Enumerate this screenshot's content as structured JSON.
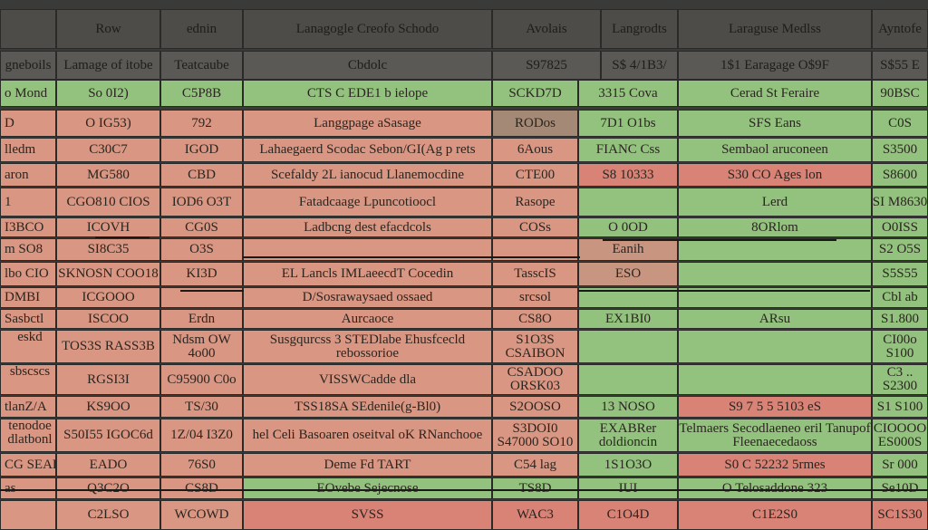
{
  "header": {
    "cells": [
      "Row",
      "ednin",
      "Lanagogle Creofo Schodo",
      "Avolais",
      "Langrodts",
      "Laraguse Medlss",
      "Ayntofe"
    ]
  },
  "subheader": {
    "cells": [
      "gneboils",
      "Lamage of itobe",
      "Teatcaube",
      "Cbdolc",
      "S97825",
      "S$ 4/1B3/",
      "1$1 Earagage O$9F",
      "S$55 E"
    ]
  },
  "rows": [
    [
      "o Mond",
      "So 0I2)",
      "C5P8B",
      "CTS C  EDE1 b ielope",
      "SCKD7D",
      "3315 Cova",
      "Cerad St Feraire",
      "90BSC"
    ],
    [
      "D",
      "O IG53)",
      "792",
      "Langgpage aSasage",
      "RODos",
      "7D1 O1bs",
      "SFS Eans",
      "C0S"
    ],
    [
      "lledm",
      "C30C7",
      "IGOD",
      "Lahaegaerd Scodac Sebon/GI(Ag p rets",
      "6Aous",
      "FIANC Css",
      "Sembaol aruconeen",
      "S3500"
    ],
    [
      "aron",
      "MG580",
      "CBD",
      "Scefaldy 2L ianocud Llanemocdine",
      "CTE00",
      "S8 10333",
      "S30 CO Ages lon",
      "S8600"
    ],
    [
      "1",
      "CGO810 CIOS",
      "IOD6 O3T",
      "Fatadcaage Lpuncotioocl",
      "Rasope",
      "",
      "Lerd",
      "SI M8630"
    ],
    [
      "I3BCO",
      "ICOVH",
      "CG0S",
      "Ladbcng dest efacdcols",
      "COSs",
      "O 0OD",
      "8ORlom",
      "O0ISS"
    ],
    [
      "m SO8",
      "SI8C35",
      "O3S",
      "",
      "",
      "Eanih",
      "",
      "S2 O5S"
    ],
    [
      "lbo CIO",
      "SKNOSN COO18",
      "KI3D",
      "EL Lancls IMLaeecdT Cocedin",
      "TasscIS",
      "ESO",
      "",
      "S5S55"
    ],
    [
      "DMBI",
      "ICGOOO",
      "",
      "D/Sosrawaysaed ossaed",
      "srcsol",
      "",
      "",
      "Cbl ab"
    ],
    [
      "Sasbctl",
      "ISCOO",
      "Erdn",
      "Aurcaoce",
      "CS8O",
      "EX1BI0",
      "ARsu",
      "S1.800"
    ],
    [
      "eskd",
      "TOS3S RASS3B",
      "Ndsm OW 4o00",
      "Susgqurcss 3 STEDlabe Ehusfcecld rebossorioe",
      "S1O3S CSAIBON",
      "",
      "",
      "CI00o S100"
    ],
    [
      "sbscscs",
      "RGSI3I",
      "C95900 C0o",
      "VISSWCadde dla",
      "CSADOO ORSK03",
      "",
      "",
      "C3 .. S2300"
    ],
    [
      "tlanZ/A",
      "KS9OO",
      "TS/30",
      "TSS18SA SEdenile(g-Bl0)",
      "S2OOSO",
      "13 NOSO",
      "S9 7 5 5 5103 eS",
      "S1 S100"
    ],
    [
      "tenodoe dlatbonl",
      "S50I55 IGOC6d",
      "1Z/04 I3Z0",
      "hel Celi Basoaren oseitval oK RNanchooe",
      "S3DOI0 S47000 SO10",
      "EXABRer doldioncin",
      "Telmaers Secodlaeneo eril Tanupof Fleenaecedaoss",
      "CIOOOO ES000S"
    ],
    [
      "CG SEAD",
      "EADO",
      "76S0",
      "Deme Fd TART",
      "C54 lag",
      "1S1O3O",
      "S0 C 52232 5rmes",
      "Sr 000"
    ],
    [
      "as",
      "Q3C2O",
      "CS8D",
      "EOvebe Sejecnose",
      "TS8D",
      "IUI",
      "O Telosaddone 323",
      "Se10D"
    ],
    [
      "",
      "C2LSO",
      "WCOWD",
      "SVSS",
      "WAC3",
      "C1O4D",
      "C1E2S0",
      "SC1S30"
    ]
  ],
  "colors": {
    "background": "#3a3a38",
    "header": "#4e4c48",
    "pink": "#d99682",
    "red": "#d98276",
    "green": "#92c27e",
    "muted": "#a48a76"
  }
}
